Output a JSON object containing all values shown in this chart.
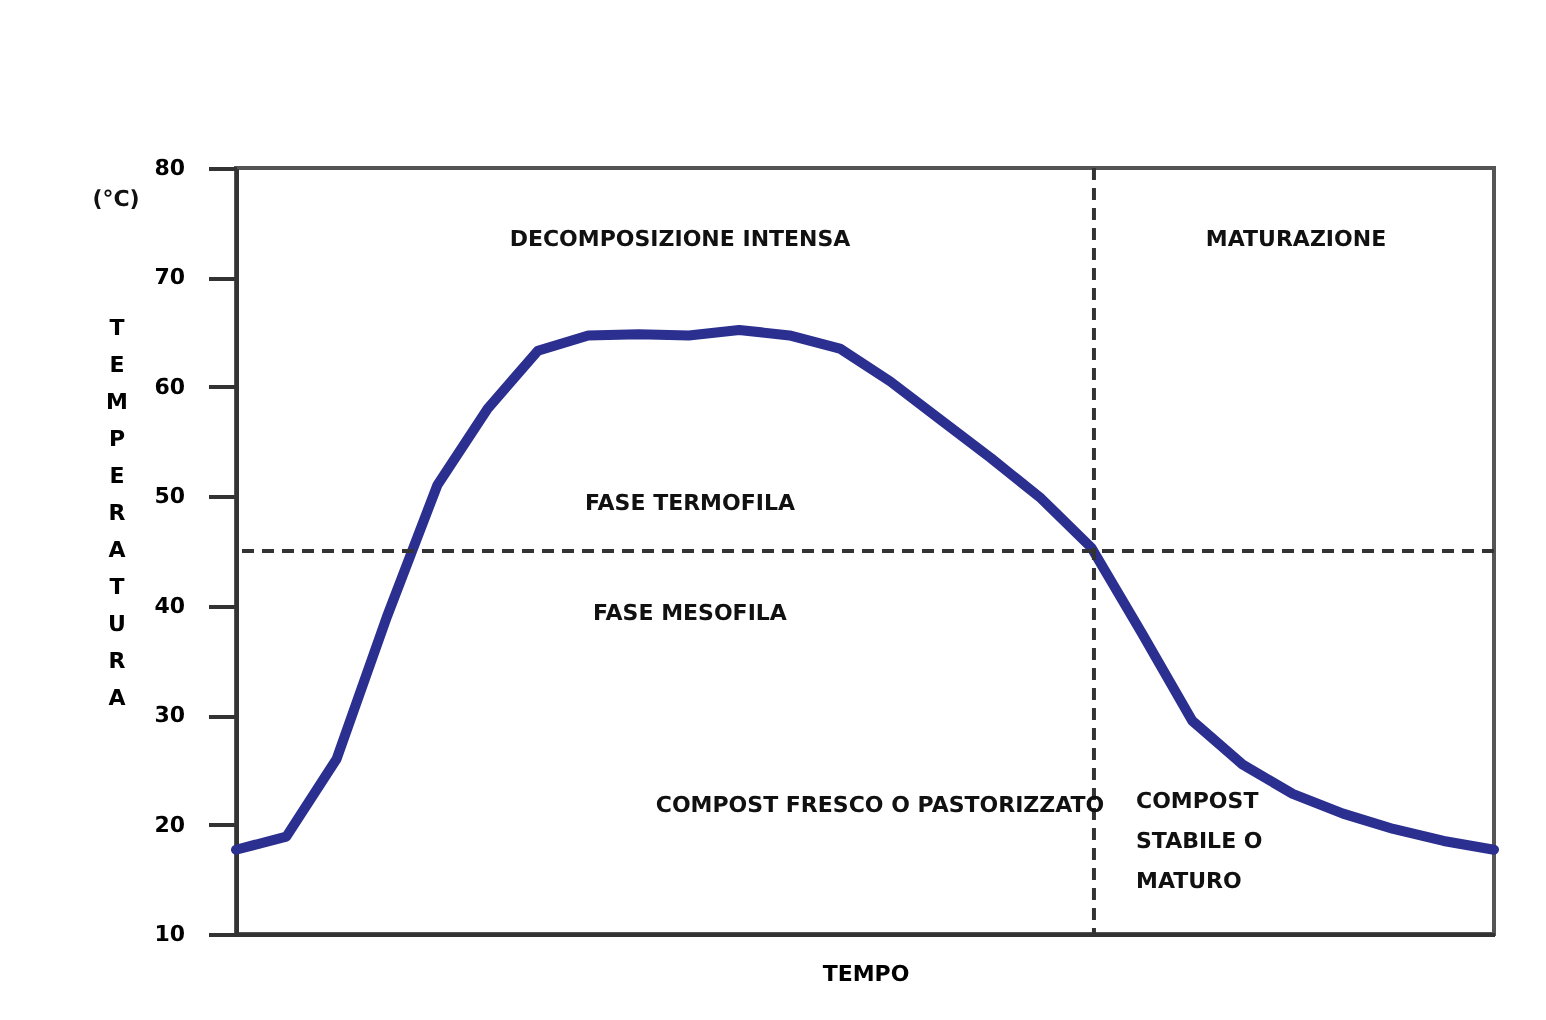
{
  "chart_data": {
    "type": "line",
    "xlabel": "TEMPO",
    "ylabel": "TEMPERATURA",
    "categories": [
      null,
      null,
      null,
      null,
      null,
      null,
      null,
      null,
      null,
      null,
      null,
      null,
      null,
      null,
      null,
      null,
      null,
      null,
      null,
      null,
      null,
      null,
      null,
      null,
      null,
      null
    ],
    "series": [
      {
        "color": "#2b2f8f",
        "values": [
          17.7,
          18.9,
          26,
          39,
          51,
          58,
          63.3,
          64.7,
          64.8,
          64.7,
          65.2,
          64.7,
          63.5,
          60.5,
          57,
          53.5,
          49.8,
          45.3,
          37.5,
          29.5,
          25.5,
          22.8,
          21,
          19.6,
          18.5,
          17.7
        ]
      }
    ],
    "ylim": [
      10,
      80
    ],
    "yticks": [
      10,
      20,
      30,
      40,
      50,
      60,
      70,
      80
    ],
    "marker": "none",
    "line_style": "solid",
    "ref_lines": [
      {
        "axis": "y",
        "value": 45,
        "line_style": "dashed",
        "color": "#333333"
      }
    ],
    "annotations": [
      "(°C)",
      "DECOMPOSIZIONE INTENSA",
      "MATURAZIONE",
      "FASE TERMOFILA",
      "FASE MESOFILA",
      "COMPOST FRESCO O PASTORIZZATO",
      "COMPOST\nSTABILE O\nMATURO"
    ]
  }
}
